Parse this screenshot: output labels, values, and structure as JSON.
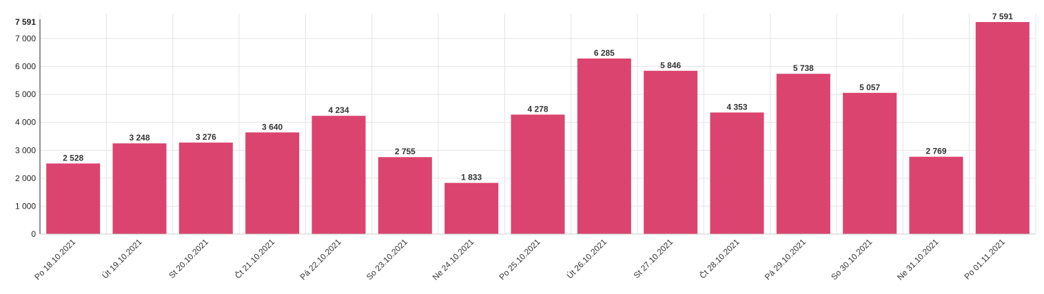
{
  "chart_data": {
    "type": "bar",
    "categories": [
      "Po 18.10.2021",
      "Út 19.10.2021",
      "St 20.10.2021",
      "Čt 21.10.2021",
      "Pá 22.10.2021",
      "So 23.10.2021",
      "Ne 24.10.2021",
      "Po 25.10.2021",
      "Út 26.10.2021",
      "St 27.10.2021",
      "Čt 28.10.2021",
      "Pá 29.10.2021",
      "So 30.10.2021",
      "Ne 31.10.2021",
      "Po 01.11.2021"
    ],
    "values": [
      2528,
      3248,
      3276,
      3640,
      4234,
      2755,
      1833,
      4278,
      6285,
      5846,
      4353,
      5738,
      5057,
      2769,
      7591
    ],
    "value_labels": [
      "2 528",
      "3 248",
      "3 276",
      "3 640",
      "4 234",
      "2 755",
      "1 833",
      "4 278",
      "6 285",
      "5 846",
      "4 353",
      "5 738",
      "5 057",
      "2 769",
      "7 591"
    ],
    "yticks": [
      0,
      1000,
      2000,
      3000,
      4000,
      5000,
      6000,
      7000,
      7591
    ],
    "ytick_labels": [
      "0",
      "1 000",
      "2 000",
      "3 000",
      "4 000",
      "5 000",
      "6 000",
      "7 000",
      "7 591"
    ],
    "ylim": [
      0,
      7591
    ],
    "title": "",
    "xlabel": "",
    "ylabel": "",
    "grid": true,
    "legend": "none",
    "bar_color": "#dc4470"
  }
}
